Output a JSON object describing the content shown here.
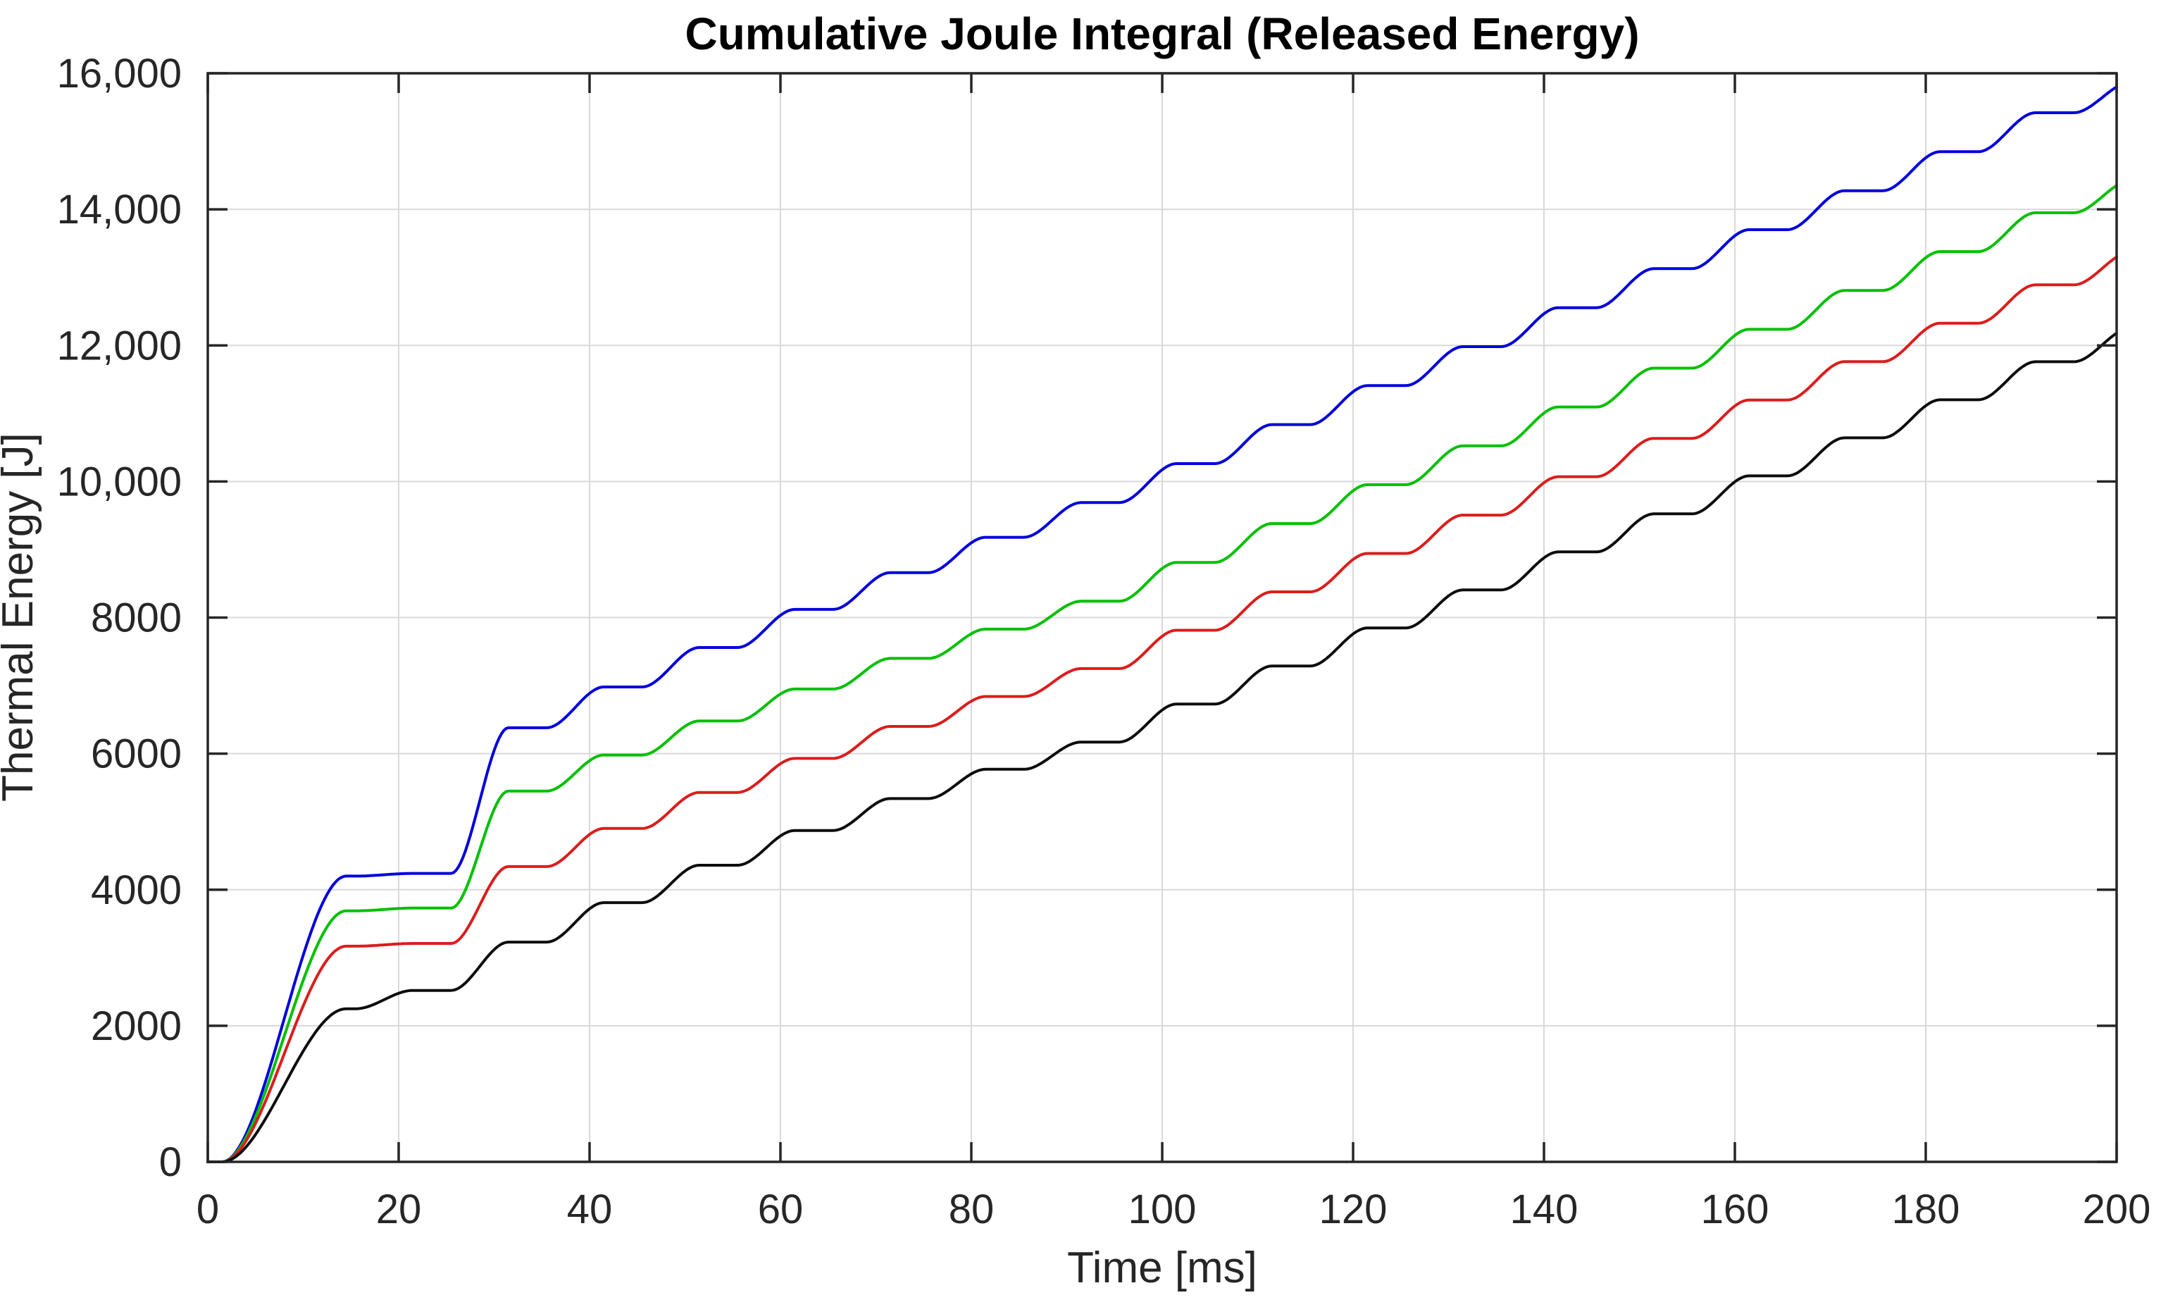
{
  "chart_data": {
    "type": "line",
    "title": "Cumulative Joule Integral (Released Energy)",
    "xlabel": "Time [ms]",
    "ylabel": "Thermal Energy [J]",
    "xlim": [
      0,
      200
    ],
    "ylim": [
      0,
      16000
    ],
    "xtick_values": [
      0,
      20,
      40,
      60,
      80,
      100,
      120,
      140,
      160,
      180,
      200
    ],
    "xtick_labels": [
      "0",
      "20",
      "40",
      "60",
      "80",
      "100",
      "120",
      "140",
      "160",
      "180",
      "200"
    ],
    "ytick_values": [
      0,
      2000,
      4000,
      6000,
      8000,
      10000,
      12000,
      14000,
      16000
    ],
    "ytick_labels": [
      "0",
      "2000",
      "4000",
      "6000",
      "8000",
      "10,000",
      "12,000",
      "14,000",
      "16,000"
    ],
    "grid": true,
    "legend": "none",
    "background_color": "#ffffff",
    "axis_color": "#262626",
    "grid_color": "#d9d9d9",
    "waveform": {
      "description": "staircase growth: smooth pulse rise each cycle followed by a flat plateau; first big sigmoid rise then long first plateau; curves end mid-rise at t=200",
      "period_ms": 10,
      "initial_rise_window_ms": [
        1.5,
        14.5
      ],
      "rise_start_offset_ms": 5.5,
      "rise_duration_ms": 6,
      "flat_center_times_ms": [
        14,
        24,
        34,
        44,
        54,
        64,
        74,
        84,
        94,
        104,
        114,
        124,
        134,
        144,
        154,
        164,
        174,
        184,
        194
      ]
    },
    "series": [
      {
        "name": "blue",
        "color": "#0000dd",
        "plateau_values_J": [
          4200,
          4240,
          6380,
          6980,
          7560,
          8120,
          8660,
          9180,
          9690,
          10263,
          10836,
          11409,
          11982,
          12555,
          13128,
          13701,
          14274,
          14847,
          15420
        ],
        "value_at_200ms_J": 15800
      },
      {
        "name": "green",
        "color": "#00c000",
        "plateau_values_J": [
          3690,
          3730,
          5450,
          5980,
          6480,
          6950,
          7400,
          7830,
          8240,
          8811,
          9382,
          9953,
          10524,
          11095,
          11666,
          12237,
          12808,
          13379,
          13950
        ],
        "value_at_200ms_J": 14350
      },
      {
        "name": "red",
        "color": "#dd1c1c",
        "plateau_values_J": [
          3170,
          3210,
          4340,
          4900,
          5430,
          5930,
          6400,
          6840,
          7250,
          7814,
          8378,
          8942,
          9506,
          10070,
          10634,
          11198,
          11762,
          12326,
          12890
        ],
        "value_at_200ms_J": 13300
      },
      {
        "name": "black",
        "color": "#0d0d0d",
        "plateau_values_J": [
          2250,
          2520,
          3230,
          3810,
          4360,
          4870,
          5340,
          5770,
          6170,
          6729,
          7288,
          7847,
          8406,
          8965,
          9524,
          10083,
          10642,
          11201,
          11760
        ],
        "value_at_200ms_J": 12180
      }
    ]
  }
}
